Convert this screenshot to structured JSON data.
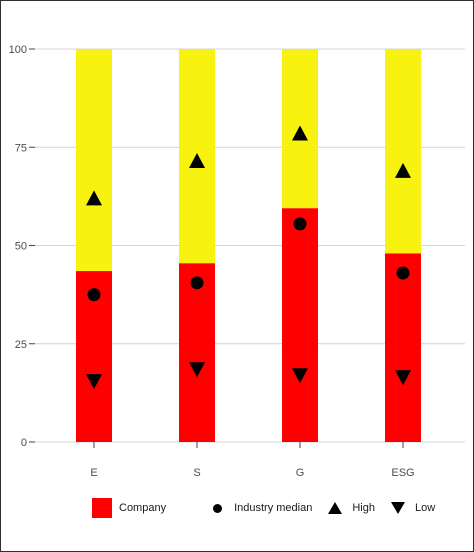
{
  "chart_data": {
    "type": "bar",
    "stacked": true,
    "categories": [
      "E",
      "S",
      "G",
      "ESG"
    ],
    "series": [
      {
        "name": "Company",
        "values": [
          43.5,
          45.5,
          59.5,
          48
        ],
        "color": "#ff0000"
      },
      {
        "values": [
          56.5,
          54.5,
          40.5,
          52
        ],
        "color": "#f7f20f"
      }
    ],
    "markers": [
      {
        "name": "Industry median",
        "shape": "circle",
        "values": [
          37.5,
          40.5,
          55.5,
          43
        ]
      },
      {
        "name": "High",
        "shape": "triangle-up",
        "values": [
          62,
          71.5,
          78.5,
          69
        ]
      },
      {
        "name": "Low",
        "shape": "triangle-down",
        "values": [
          15.5,
          18.5,
          17,
          16.5
        ]
      }
    ],
    "yticks": [
      0,
      25,
      50,
      75,
      100
    ],
    "ylim": [
      0,
      100
    ],
    "grid": true,
    "legend": "bottom",
    "title": "",
    "xlabel": "",
    "ylabel": ""
  },
  "legend": {
    "company": "Company",
    "median": "Industry median",
    "high": "High",
    "low": "Low"
  }
}
